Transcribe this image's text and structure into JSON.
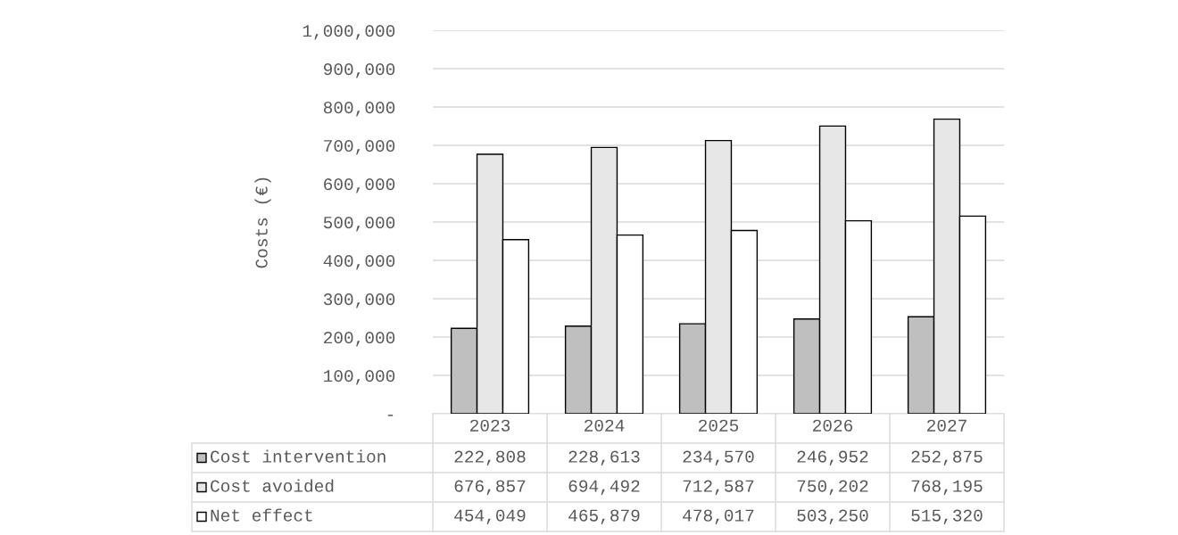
{
  "chart_data": {
    "type": "bar",
    "ylabel": "Costs (€)",
    "categories": [
      "2023",
      "2024",
      "2025",
      "2026",
      "2027"
    ],
    "series": [
      {
        "name": "Cost intervention",
        "color": "#bfbfbf",
        "values": [
          222808,
          228613,
          234570,
          246952,
          252875
        ],
        "value_labels": [
          "222,808",
          "228,613",
          "234,570",
          "246,952",
          "252,875"
        ]
      },
      {
        "name": "Cost avoided",
        "color": "#e7e7e7",
        "values": [
          676857,
          694492,
          712587,
          750202,
          768195
        ],
        "value_labels": [
          "676,857",
          "694,492",
          "712,587",
          "750,202",
          "768,195"
        ]
      },
      {
        "name": "Net effect",
        "color": "#ffffff",
        "values": [
          454049,
          465879,
          478017,
          503250,
          515320
        ],
        "value_labels": [
          "454,049",
          "465,879",
          "478,017",
          "503,250",
          "515,320"
        ]
      }
    ],
    "ylim": [
      0,
      1000000
    ],
    "yticks": [
      {
        "value": 0,
        "label": "-"
      },
      {
        "value": 100000,
        "label": "100,000"
      },
      {
        "value": 200000,
        "label": "200,000"
      },
      {
        "value": 300000,
        "label": "300,000"
      },
      {
        "value": 400000,
        "label": "400,000"
      },
      {
        "value": 500000,
        "label": "500,000"
      },
      {
        "value": 600000,
        "label": "600,000"
      },
      {
        "value": 700000,
        "label": "700,000"
      },
      {
        "value": 800000,
        "label": "800,000"
      },
      {
        "value": 900000,
        "label": "900,000"
      },
      {
        "value": 1000000,
        "label": "1,000,000"
      }
    ],
    "grid": "y",
    "legend": "bottom"
  }
}
